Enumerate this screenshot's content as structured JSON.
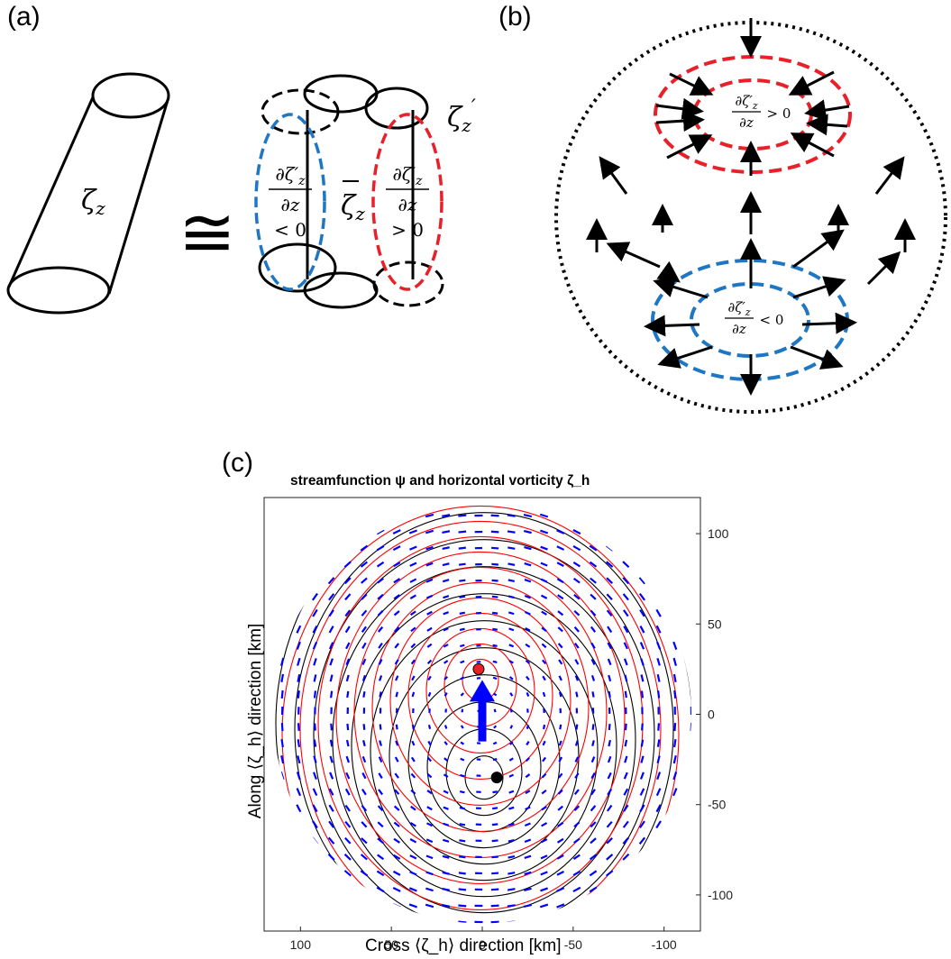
{
  "panels": {
    "a": {
      "label": "(a)",
      "cylinder_label": "ζ_z",
      "approx_symbol": "≅",
      "mean_label": "ζ̄_z",
      "perturb_label": "ζ′_z",
      "left_frac": {
        "num": "∂ζ′_z",
        "den": "∂z",
        "rel": "< 0"
      },
      "right_frac": {
        "num": "∂ζ′_z",
        "den": "∂z",
        "rel": "> 0"
      },
      "colors": {
        "negative": "#1f77c4",
        "positive": "#e8202a"
      }
    },
    "b": {
      "label": "(b)",
      "top_text": {
        "num": "∂ζ′_z",
        "den": "∂z",
        "rel": "> 0"
      },
      "bottom_text": {
        "num": "∂ζ′_z",
        "den": "∂z",
        "rel": "< 0"
      }
    },
    "c": {
      "label": "(c)",
      "title": "streamfunction ψ and horizontal vorticity ζ_h",
      "xlabel": "Cross ⟨ζ_h⟩ direction [km]",
      "ylabel": "Along ⟨ζ_h⟩ direction [km]"
    }
  },
  "chart_data": {
    "type": "contour",
    "title": "streamfunction ψ and horizontal vorticity ζ_h",
    "xlabel": "Cross ⟨ζ_h⟩ direction [km]",
    "ylabel": "Along ⟨ζ_h⟩ direction [km]",
    "x_ticks": [
      "100",
      "50",
      "0",
      "-50",
      "-100"
    ],
    "y_ticks": [
      "100",
      "50",
      "0",
      "-50",
      "-100"
    ],
    "xlim": [
      120,
      -120
    ],
    "ylim": [
      -120,
      120
    ],
    "y_axis_side": "right",
    "x_axis_reversed": true,
    "points": [
      {
        "name": "red-dot",
        "x": 2,
        "y": 25,
        "color": "#e8202a"
      },
      {
        "name": "black-dot",
        "x": -8,
        "y": -35,
        "color": "#000000"
      }
    ],
    "mean_vector": {
      "x": 0,
      "from_y": -15,
      "to_y": 18,
      "color": "#0000ff"
    },
    "contour_colors": {
      "psi_positive": "#ff0000",
      "psi_negative": "#000000",
      "vectors": "#0000ff"
    }
  }
}
